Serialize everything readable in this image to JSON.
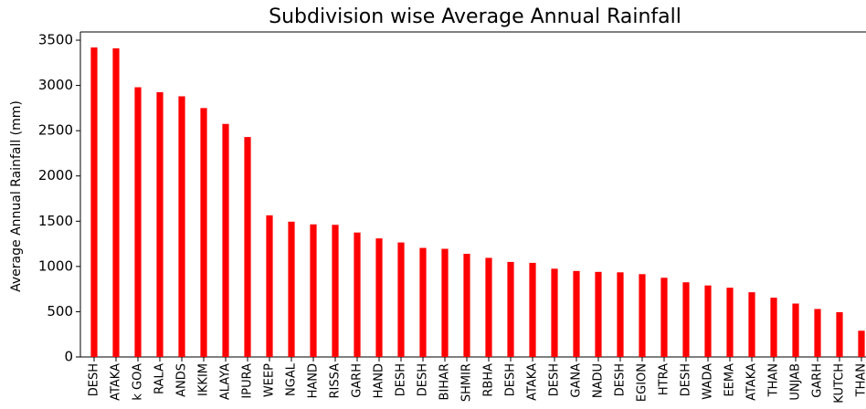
{
  "chart_data": {
    "type": "bar",
    "title": "Subdivision wise Average Annual Rainfall",
    "ylabel": "Average Annual Rainfall (mm)",
    "categories": [
      "DESH",
      "ATAKA",
      "k GOA",
      "RALA",
      "ANDS",
      "IKKIM",
      "ALAYA",
      "IPURA",
      "WEEP",
      "NGAL",
      "HAND",
      "RISSA",
      "GARH",
      "HAND",
      "DESH",
      "DESH",
      "BIHAR",
      "SHMIR",
      "RBHA",
      "DESH",
      "ATAKA",
      "DESH",
      "GANA",
      "NADU",
      "DESH",
      "EGION",
      "HTRA",
      "DESH",
      "WADA",
      "EEMA",
      "ATAKA",
      "THAN",
      "UNJAB",
      "GARH",
      "KUTCH",
      "THAN"
    ],
    "values": [
      3420,
      3410,
      2980,
      2925,
      2880,
      2750,
      2575,
      2430,
      1565,
      1495,
      1465,
      1460,
      1375,
      1310,
      1265,
      1205,
      1195,
      1140,
      1095,
      1050,
      1040,
      975,
      950,
      940,
      935,
      915,
      875,
      825,
      790,
      765,
      715,
      655,
      590,
      530,
      495,
      290
    ],
    "color": "#ff0000",
    "ylim": [
      0,
      3591
    ],
    "yticks": [
      0,
      500,
      1000,
      1500,
      2000,
      2500,
      3000,
      3500
    ],
    "grid": false
  }
}
